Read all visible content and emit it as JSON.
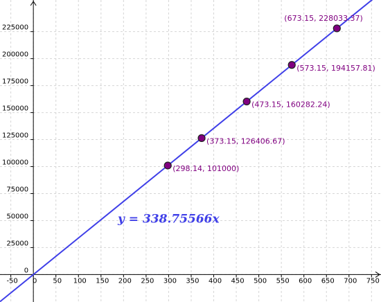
{
  "chart_data": {
    "type": "scatter",
    "x": [
      298.14,
      373.15,
      473.15,
      573.15,
      673.15
    ],
    "series": [
      {
        "color": "#800080",
        "values": [
          101000,
          126406.67,
          160282.24,
          194157.81,
          228033.37
        ],
        "value_labels": [
          "(298.14, 101000)",
          "(373.15, 126406.67)",
          "(473.15, 160282.24)",
          "(573.15, 194157.81)",
          "(673.15, 228033.37)"
        ]
      }
    ],
    "line": {
      "slope": 338.75566,
      "label": "y = 338.75566x",
      "color": "#3f3fe8"
    },
    "xlim": [
      -74,
      771
    ],
    "ylim": [
      -25400,
      254300
    ],
    "xticks": [
      -50,
      0,
      50,
      100,
      150,
      200,
      250,
      300,
      350,
      400,
      450,
      500,
      550,
      600,
      650,
      700,
      750
    ],
    "yticks": [
      0,
      25000,
      50000,
      75000,
      100000,
      125000,
      150000,
      175000,
      200000,
      225000
    ],
    "grid": true
  }
}
